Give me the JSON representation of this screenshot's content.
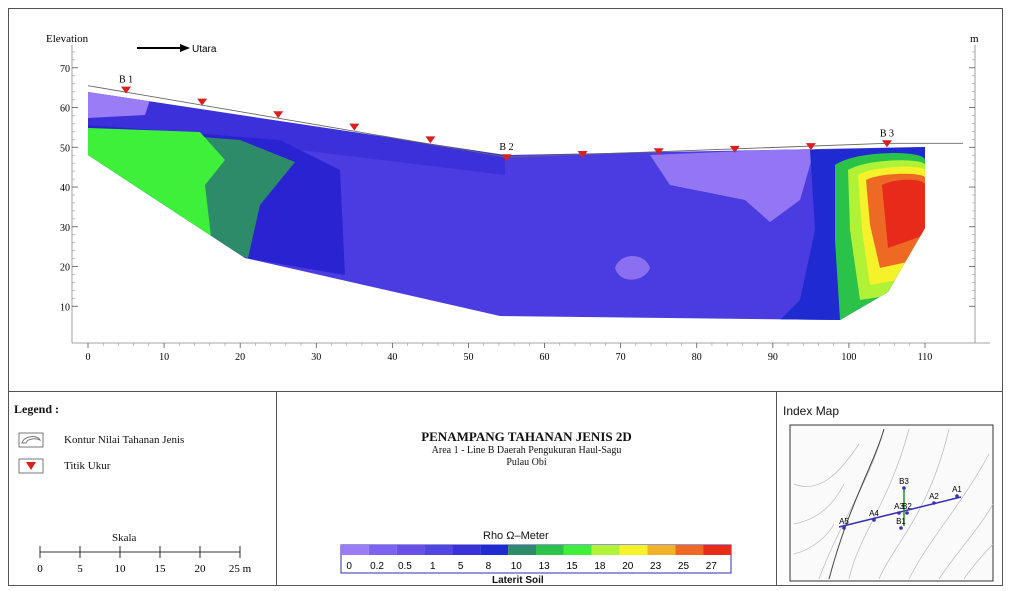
{
  "chart_data": {
    "type": "heatmap",
    "ylabel": "Elevation",
    "ylabel_right": "m",
    "north_label": "Utara",
    "x_ticks": [
      0,
      10,
      20,
      30,
      40,
      50,
      60,
      70,
      80,
      90,
      100,
      110
    ],
    "y_ticks": [
      10,
      20,
      30,
      40,
      50,
      60,
      70
    ],
    "xlim": [
      0,
      115
    ],
    "ylim": [
      0,
      74
    ],
    "topography": [
      [
        0,
        65.5
      ],
      [
        55,
        47.5
      ],
      [
        105,
        51
      ],
      [
        115,
        51
      ]
    ],
    "measure_points": [
      {
        "x": 5,
        "y": 64.5,
        "label": "B 1"
      },
      {
        "x": 15,
        "y": 61.5,
        "label": ""
      },
      {
        "x": 25,
        "y": 58.3,
        "label": ""
      },
      {
        "x": 35,
        "y": 55.2,
        "label": ""
      },
      {
        "x": 45,
        "y": 52,
        "label": ""
      },
      {
        "x": 55,
        "y": 47.5,
        "label": "B 2"
      },
      {
        "x": 65,
        "y": 48.3,
        "label": ""
      },
      {
        "x": 75,
        "y": 49,
        "label": ""
      },
      {
        "x": 85,
        "y": 49.6,
        "label": ""
      },
      {
        "x": 95,
        "y": 50.3,
        "label": ""
      },
      {
        "x": 105,
        "y": 51,
        "label": "B 3"
      }
    ],
    "colorbar": {
      "title": "Rho Ω–Meter",
      "ticks": [
        "0",
        "0.2",
        "0.5",
        "1",
        "5",
        "8",
        "10",
        "13",
        "15",
        "18",
        "20",
        "23",
        "25",
        "27"
      ],
      "colors": [
        "#9a7cf6",
        "#7f61ef",
        "#6a4fe6",
        "#5246e0",
        "#3a32d8",
        "#1f2ad0",
        "#2e8b6a",
        "#2bc24a",
        "#3ef03a",
        "#b0f236",
        "#f6f22a",
        "#f2b22a",
        "#ee6a24",
        "#e82a1a"
      ],
      "footer": "Laterit Soil"
    }
  },
  "legend": {
    "title": "Legend :",
    "contour_label": "Kontur Nilai Tahanan Jenis",
    "point_label": "Titik Ukur",
    "scale_title": "Skala",
    "scale_ticks": [
      "0",
      "5",
      "10",
      "15",
      "20",
      "25 m"
    ]
  },
  "title_block": {
    "title": "PENAMPANG TAHANAN JENIS 2D",
    "line1": "Area 1 - Line B Daerah Pengukuran Haul-Sagu",
    "line2": "Pulau Obi"
  },
  "index_map": {
    "title": "Index Map",
    "labels": [
      "B3",
      "A1",
      "A2",
      "A3",
      "B2",
      "B1",
      "A4",
      "A5"
    ]
  },
  "colors": {
    "frame": "#555555",
    "point_marker": "#d9201e",
    "line_marker": "#3a2fb8"
  }
}
